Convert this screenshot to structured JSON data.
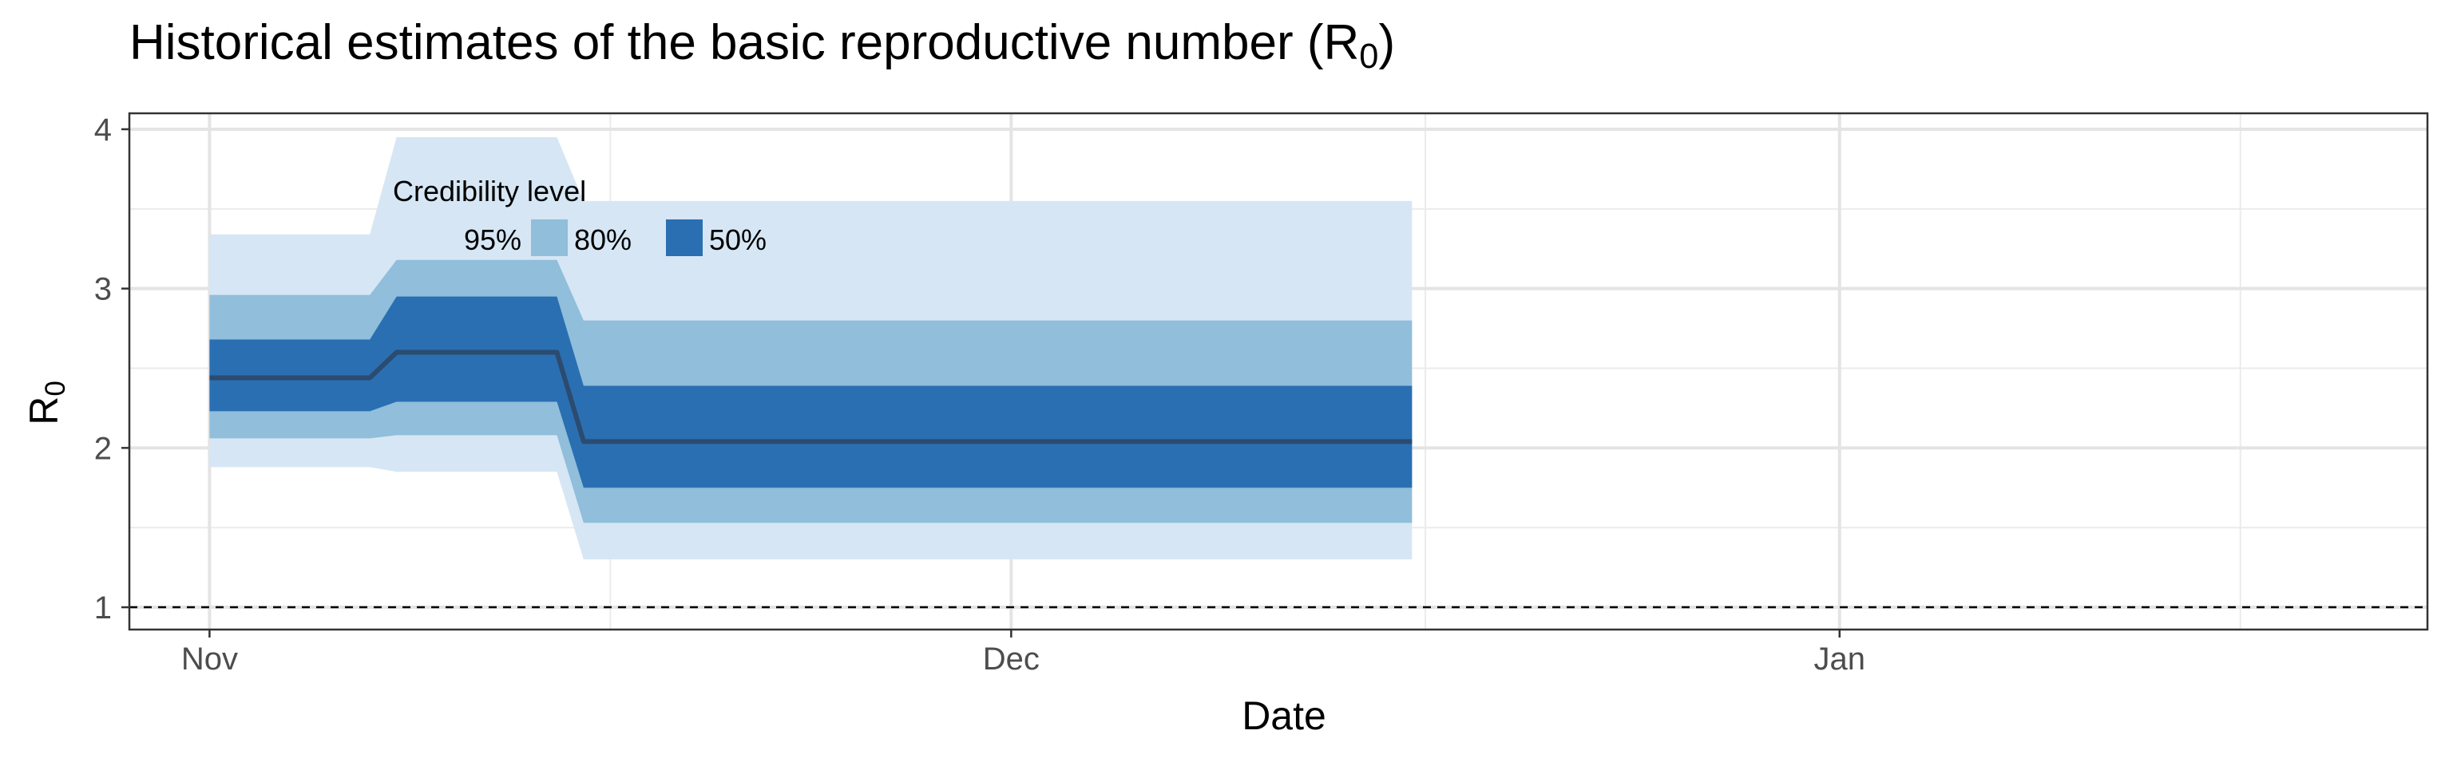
{
  "chart_data": {
    "type": "area",
    "title": "Historical estimates of the basic reproductive number (R",
    "title_sub": "0",
    "title_end": ")",
    "xlabel": "Date",
    "ylabel": "R",
    "ylabel_sub": "0",
    "x_ticks": [
      {
        "label": "Nov",
        "date": "2020-11-01"
      },
      {
        "label": "Dec",
        "date": "2020-12-01"
      },
      {
        "label": "Jan",
        "date": "2021-01-01"
      }
    ],
    "x_range": [
      "2020-10-29",
      "2021-01-23"
    ],
    "y_ticks": [
      1,
      2,
      3,
      4
    ],
    "ylim": [
      0.86,
      4.1
    ],
    "reference_line": {
      "y": 1,
      "style": "dashed"
    },
    "grid": true,
    "legend": {
      "title": "Credibility level",
      "placement": "top-left inside",
      "items": [
        {
          "label": "95%",
          "color": "#d6e6f4"
        },
        {
          "label": "80%",
          "color": "#90bedb"
        },
        {
          "label": "50%",
          "color": "#2a6fb2"
        }
      ]
    },
    "median_color": "#2b4b6f",
    "series": {
      "x": [
        "2020-11-01",
        "2020-11-07",
        "2020-11-08",
        "2020-11-14",
        "2020-11-15",
        "2020-12-16"
      ],
      "median": [
        2.44,
        2.44,
        2.6,
        2.6,
        2.04,
        2.04
      ],
      "ci50": [
        [
          2.23,
          2.68
        ],
        [
          2.23,
          2.68
        ],
        [
          2.29,
          2.95
        ],
        [
          2.29,
          2.95
        ],
        [
          1.75,
          2.39
        ],
        [
          1.75,
          2.39
        ]
      ],
      "ci80": [
        [
          2.06,
          2.96
        ],
        [
          2.06,
          2.96
        ],
        [
          2.08,
          3.18
        ],
        [
          2.08,
          3.18
        ],
        [
          1.53,
          2.8
        ],
        [
          1.53,
          2.8
        ]
      ],
      "ci95": [
        [
          1.88,
          3.34
        ],
        [
          1.88,
          3.34
        ],
        [
          1.85,
          3.95
        ],
        [
          1.85,
          3.95
        ],
        [
          1.3,
          3.55
        ],
        [
          1.3,
          3.55
        ]
      ]
    }
  }
}
